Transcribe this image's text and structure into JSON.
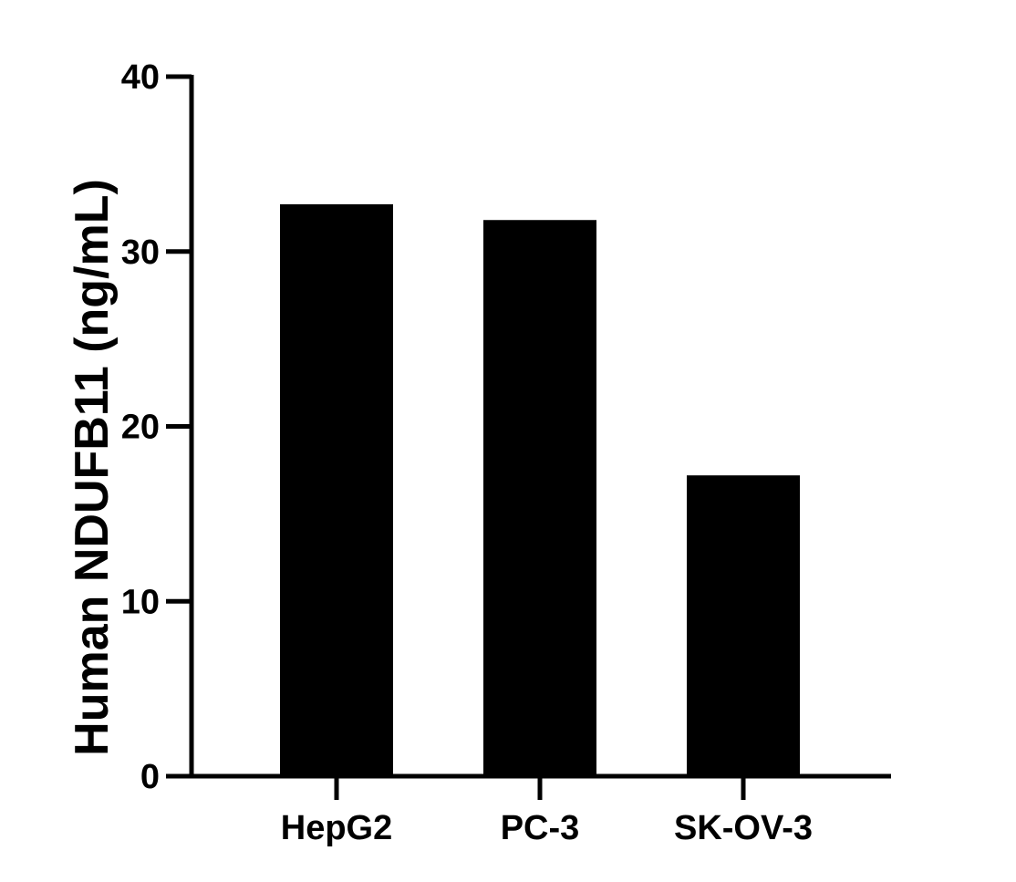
{
  "chart_data": {
    "type": "bar",
    "title": "",
    "xlabel": "",
    "ylabel": "Human NDUFB11 (ng/mL)",
    "categories": [
      "HepG2",
      "PC-3",
      "SK-OV-3"
    ],
    "values": [
      32.7,
      31.8,
      17.2
    ],
    "ylim": [
      0,
      40
    ],
    "yticks": [
      0,
      10,
      20,
      30,
      40
    ],
    "grid": false,
    "legend": "none",
    "bar_color": "#000000"
  }
}
